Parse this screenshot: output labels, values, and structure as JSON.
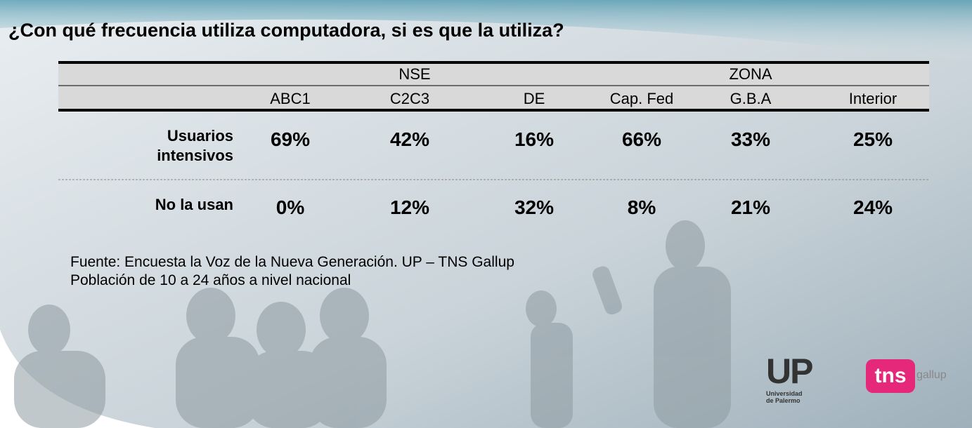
{
  "title": "¿Con qué frecuencia utiliza computadora, si es que la utiliza?",
  "table": {
    "groups": [
      "NSE",
      "ZONA"
    ],
    "columns": [
      "ABC1",
      "C2C3",
      "DE",
      "Cap. Fed",
      "G.B.A",
      "Interior"
    ],
    "rows": [
      {
        "label": "Usuarios intensivos",
        "cells": [
          "69%",
          "42%",
          "16%",
          "66%",
          "33%",
          "25%"
        ]
      },
      {
        "label": "No la usan",
        "cells": [
          "0%",
          "12%",
          "32%",
          "8%",
          "21%",
          "24%"
        ]
      }
    ]
  },
  "source": [
    "Fuente: Encuesta la Voz de la Nueva Generación. UP – TNS Gallup",
    "Población de 10 a 24 años a nivel nacional"
  ],
  "logos": {
    "up": "UP",
    "up_sub": [
      "Universidad",
      "de Palermo"
    ],
    "tns": "tns",
    "gallup": "gallup"
  }
}
